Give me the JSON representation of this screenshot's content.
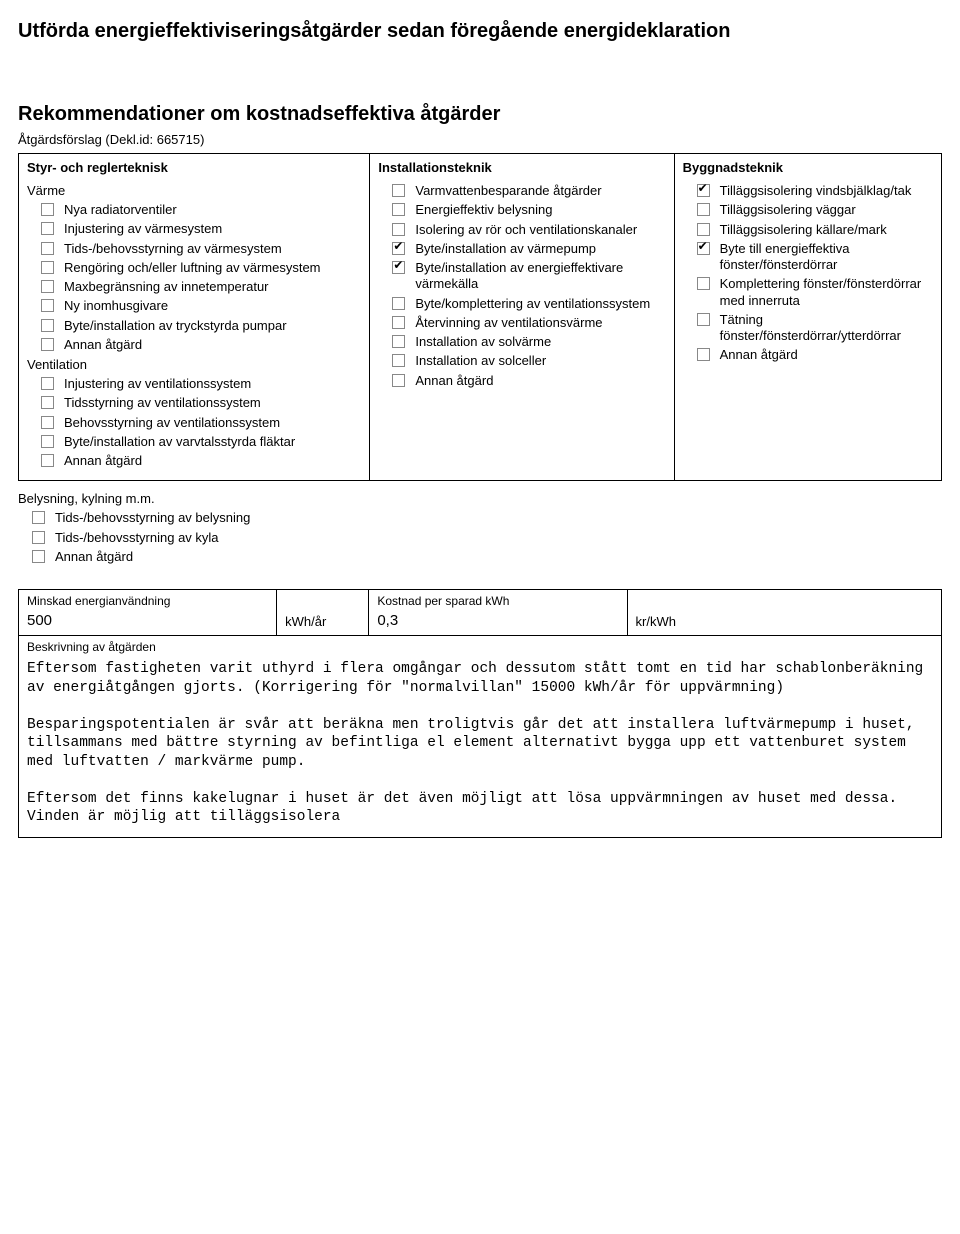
{
  "title_main": "Utförda energieffektiviseringsåtgärder sedan föregående energideklaration",
  "title_sub": "Rekommendationer om kostnadseffektiva åtgärder",
  "proposal_line": "Åtgärdsförslag (Dekl.id: 665715)",
  "columns": {
    "c1_header": "Styr- och reglerteknisk",
    "c2_header": "Installationsteknik",
    "c3_header": "Byggnadsteknik"
  },
  "c1": {
    "sec_varme": "Värme",
    "items_varme": [
      {
        "label": "Nya radiatorventiler",
        "checked": false
      },
      {
        "label": "Injustering av värmesystem",
        "checked": false
      },
      {
        "label": "Tids-/behovsstyrning av värmesystem",
        "checked": false
      },
      {
        "label": "Rengöring och/eller luftning av värmesystem",
        "checked": false
      },
      {
        "label": "Maxbegränsning av innetemperatur",
        "checked": false
      },
      {
        "label": "Ny inomhusgivare",
        "checked": false
      },
      {
        "label": "Byte/installation av tryckstyrda pumpar",
        "checked": false
      },
      {
        "label": "Annan åtgärd",
        "checked": false
      }
    ],
    "sec_vent": "Ventilation",
    "items_vent": [
      {
        "label": "Injustering av ventilationssystem",
        "checked": false
      },
      {
        "label": "Tidsstyrning av ventilationssystem",
        "checked": false
      },
      {
        "label": "Behovsstyrning av ventilationssystem",
        "checked": false
      },
      {
        "label": "Byte/installation av varvtalsstyrda fläktar",
        "checked": false
      },
      {
        "label": "Annan åtgärd",
        "checked": false
      }
    ],
    "sec_bely": "Belysning, kylning m.m.",
    "items_bely": [
      {
        "label": "Tids-/behovsstyrning av belysning",
        "checked": false
      },
      {
        "label": "Tids-/behovsstyrning av kyla",
        "checked": false
      },
      {
        "label": "Annan åtgärd",
        "checked": false
      }
    ]
  },
  "c2": {
    "items": [
      {
        "label": "Varmvattenbesparande åtgärder",
        "checked": false
      },
      {
        "label": "Energieffektiv belysning",
        "checked": false
      },
      {
        "label": "Isolering av rör och ventilationskanaler",
        "checked": false
      },
      {
        "label": "Byte/installation av värmepump",
        "checked": true
      },
      {
        "label": "Byte/installation av energieffektivare värmekälla",
        "checked": true
      },
      {
        "label": "Byte/komplettering av ventilationssystem",
        "checked": false
      },
      {
        "label": "Återvinning av ventilationsvärme",
        "checked": false
      },
      {
        "label": "Installation av solvärme",
        "checked": false
      },
      {
        "label": "Installation av solceller",
        "checked": false
      },
      {
        "label": "Annan åtgärd",
        "checked": false
      }
    ]
  },
  "c3": {
    "items": [
      {
        "label": "Tilläggsisolering vindsbjälklag/tak",
        "checked": true
      },
      {
        "label": "Tilläggsisolering väggar",
        "checked": false
      },
      {
        "label": "Tilläggsisolering källare/mark",
        "checked": false
      },
      {
        "label": "Byte till energieffektiva fönster/fönsterdörrar",
        "checked": true
      },
      {
        "label": "Komplettering fönster/fönsterdörrar med innerruta",
        "checked": false
      },
      {
        "label": "Tätning fönster/fönsterdörrar/ytterdörrar",
        "checked": false
      },
      {
        "label": "Annan åtgärd",
        "checked": false
      }
    ]
  },
  "metrics": {
    "m1_label": "Minskad energianvändning",
    "m1_value": "500",
    "m1_unit": "kWh/år",
    "m2_label": "Kostnad per sparad kWh",
    "m2_value": "0,3",
    "m2_unit": "kr/kWh"
  },
  "desc": {
    "label": "Beskrivning av åtgärden",
    "text": "Eftersom fastigheten varit uthyrd i flera omgångar och dessutom stått tomt en tid har schablonberäkning av energiåtgången gjorts. (Korrigering för \"normalvillan\" 15000 kWh/år för uppvärmning)\n\nBesparingspotentialen är svår att beräkna men troligtvis går det att installera luftvärmepump i huset, tillsammans med bättre styrning av befintliga el element alternativt bygga upp ett vattenburet system med luftvatten / markvärme pump.\n\nEftersom det finns kakelugnar i huset är det även möjligt att lösa uppvärmningen av huset med dessa.\nVinden är möjlig att tilläggsisolera"
  }
}
